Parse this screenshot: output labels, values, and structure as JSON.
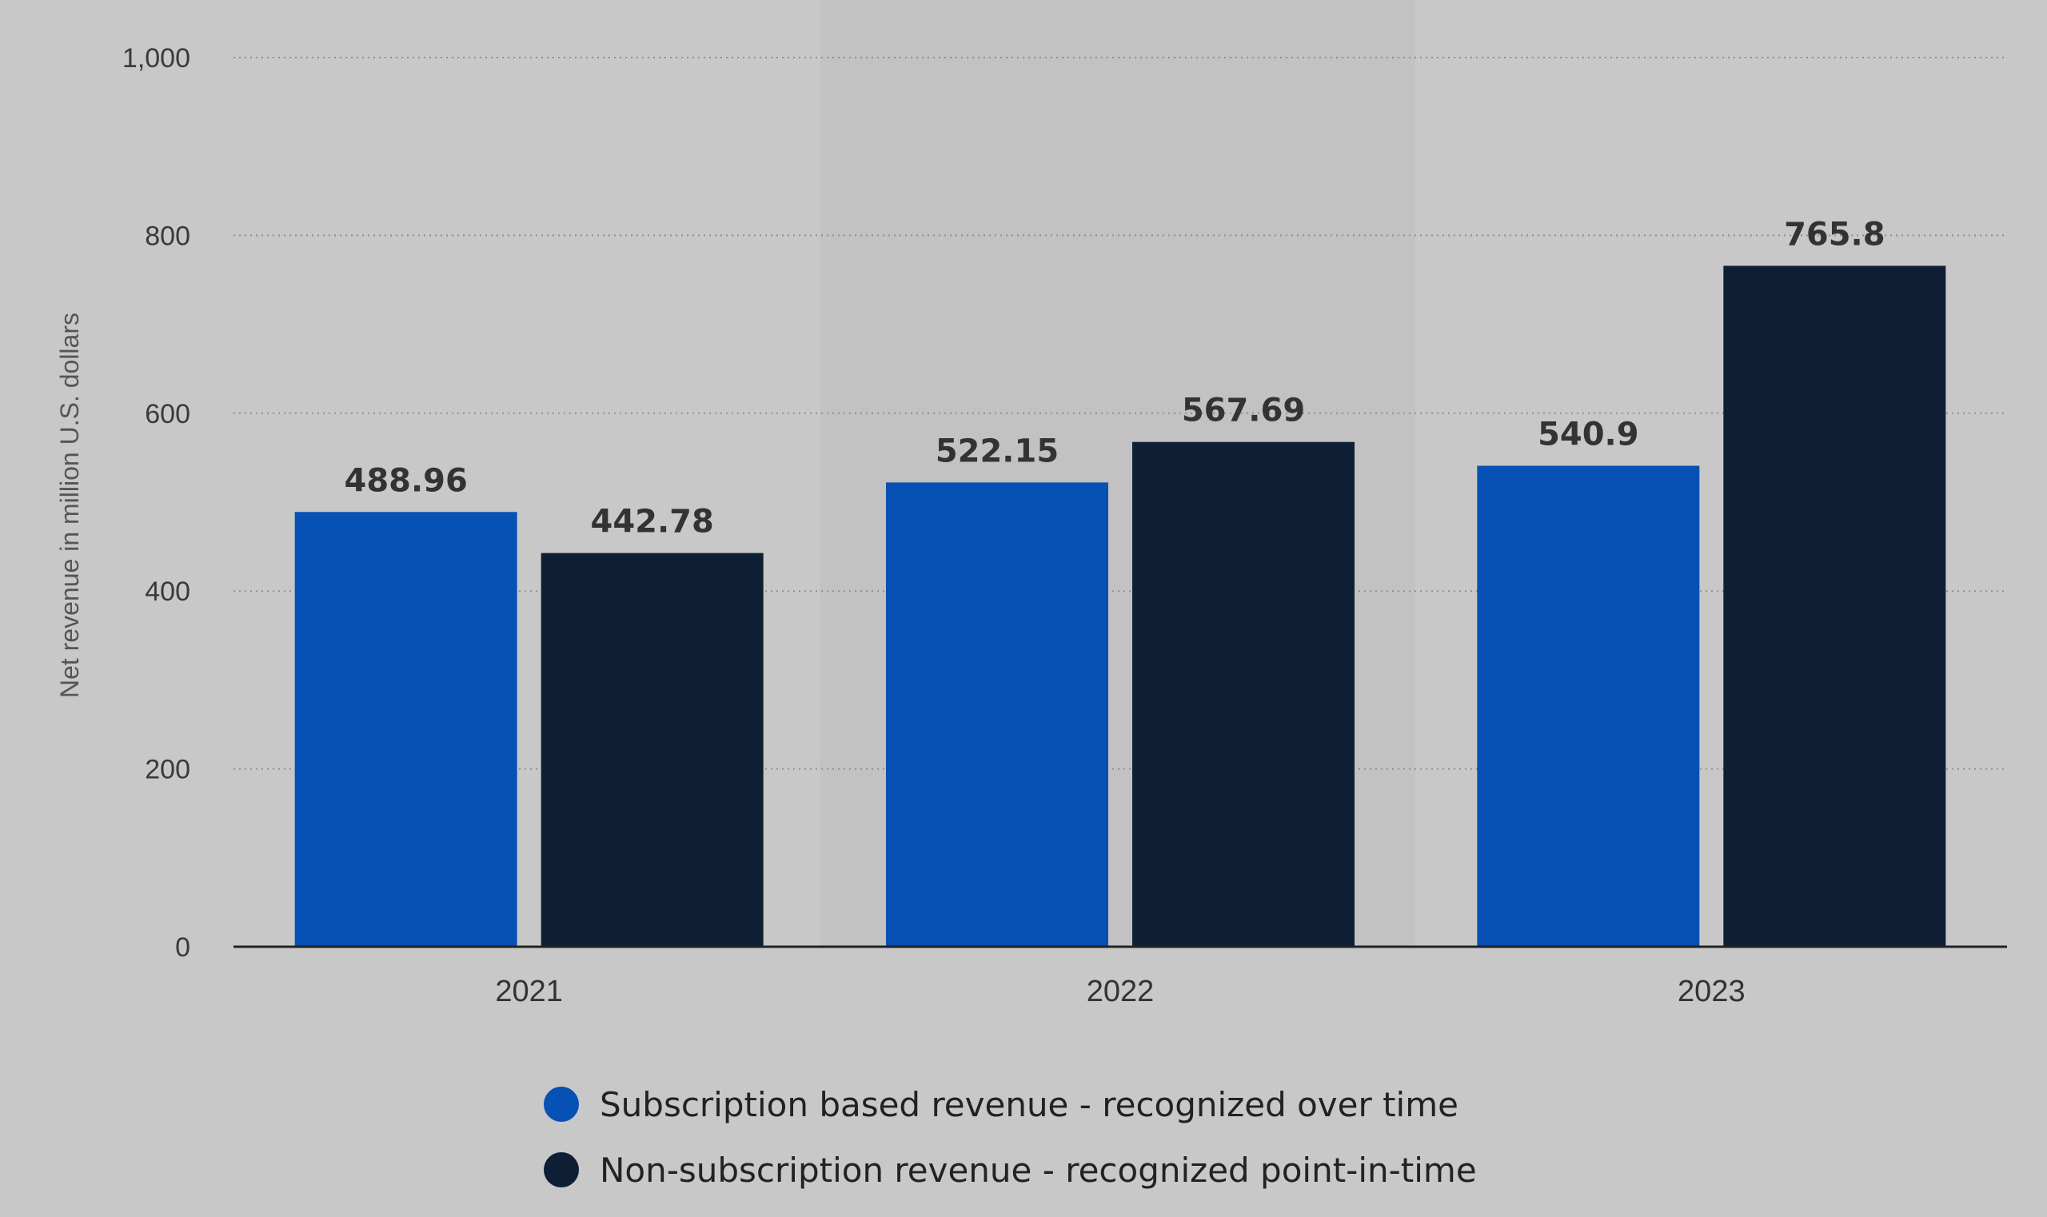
{
  "chart_data": {
    "type": "bar",
    "title": "",
    "xlabel": "",
    "ylabel": "Net revenue in million U.S. dollars",
    "ylim": [
      0,
      1000
    ],
    "yticks": [
      0,
      200,
      400,
      600,
      800,
      1000
    ],
    "ytick_labels": [
      "0",
      "200",
      "400",
      "600",
      "800",
      "1,000"
    ],
    "categories": [
      "2021",
      "2022",
      "2023"
    ],
    "series": [
      {
        "name": "Subscription based revenue - recognized over time",
        "color": "#0750b4",
        "values": [
          488.96,
          522.15,
          540.9
        ],
        "labels": [
          "488.96",
          "522.15",
          "540.9"
        ]
      },
      {
        "name": "Non-subscription revenue - recognized point-in-time",
        "color": "#0e1f35",
        "values": [
          442.78,
          567.69,
          765.8
        ],
        "labels": [
          "442.78",
          "567.69",
          "765.8"
        ]
      }
    ],
    "grid": true,
    "legend": "bottom"
  }
}
